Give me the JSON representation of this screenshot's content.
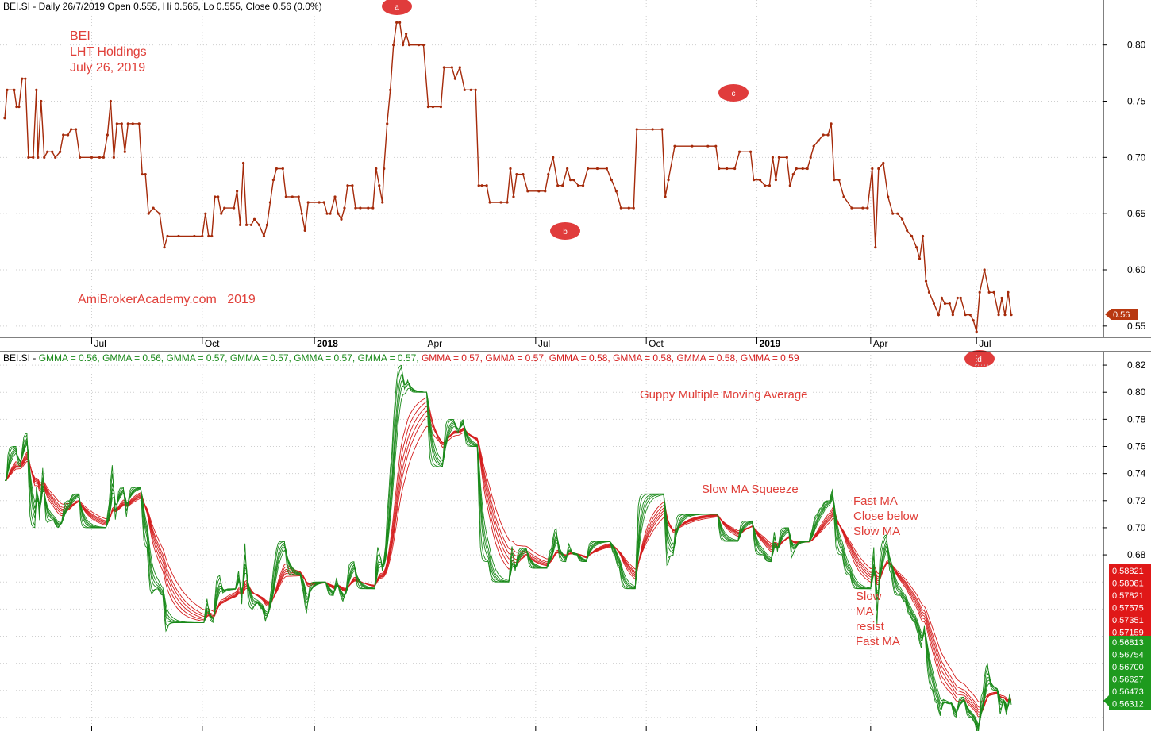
{
  "chart_data": [
    {
      "type": "line",
      "header": "BEI.SI - Daily 26/7/2019 Open 0.555, Hi 0.565, Lo 0.555, Close 0.56 (0.0%)",
      "ylim": [
        0.54,
        0.84
      ],
      "y_ticks": [
        "0.80",
        "0.75",
        "0.70",
        "0.65",
        "0.60",
        "0.55"
      ],
      "x_ticks": [
        "Jul",
        "Oct",
        "2018",
        "Apr",
        "Jul",
        "Oct",
        "2019",
        "Apr",
        "Jul"
      ],
      "last_value_label": "0.56",
      "series": [
        {
          "color": "#a52a0a",
          "points": [
            [
              0,
              0.735
            ],
            [
              3,
              0.76
            ],
            [
              12,
              0.76
            ],
            [
              15,
              0.745
            ],
            [
              18,
              0.745
            ],
            [
              22,
              0.77
            ],
            [
              26,
              0.77
            ],
            [
              30,
              0.7
            ],
            [
              36,
              0.7
            ],
            [
              40,
              0.76
            ],
            [
              42,
              0.7
            ],
            [
              46,
              0.75
            ],
            [
              50,
              0.7
            ],
            [
              54,
              0.705
            ],
            [
              60,
              0.705
            ],
            [
              64,
              0.7
            ],
            [
              70,
              0.705
            ],
            [
              74,
              0.72
            ],
            [
              80,
              0.72
            ],
            [
              84,
              0.725
            ],
            [
              90,
              0.725
            ],
            [
              95,
              0.7
            ],
            [
              110,
              0.7
            ],
            [
              120,
              0.7
            ],
            [
              125,
              0.7
            ],
            [
              130,
              0.72
            ],
            [
              134,
              0.75
            ],
            [
              138,
              0.7
            ],
            [
              142,
              0.73
            ],
            [
              148,
              0.73
            ],
            [
              152,
              0.705
            ],
            [
              156,
              0.73
            ],
            [
              162,
              0.73
            ],
            [
              170,
              0.73
            ],
            [
              174,
              0.685
            ],
            [
              178,
              0.685
            ],
            [
              182,
              0.65
            ],
            [
              188,
              0.655
            ],
            [
              196,
              0.65
            ],
            [
              202,
              0.62
            ],
            [
              206,
              0.63
            ],
            [
              220,
              0.63
            ],
            [
              240,
              0.63
            ],
            [
              250,
              0.63
            ],
            [
              254,
              0.65
            ],
            [
              258,
              0.63
            ],
            [
              262,
              0.63
            ],
            [
              266,
              0.665
            ],
            [
              270,
              0.665
            ],
            [
              274,
              0.65
            ],
            [
              278,
              0.655
            ],
            [
              290,
              0.655
            ],
            [
              294,
              0.67
            ],
            [
              298,
              0.64
            ],
            [
              302,
              0.695
            ],
            [
              306,
              0.64
            ],
            [
              312,
              0.64
            ],
            [
              316,
              0.645
            ],
            [
              322,
              0.64
            ],
            [
              328,
              0.63
            ],
            [
              332,
              0.64
            ],
            [
              336,
              0.66
            ],
            [
              340,
              0.68
            ],
            [
              344,
              0.69
            ],
            [
              352,
              0.69
            ],
            [
              356,
              0.665
            ],
            [
              364,
              0.665
            ],
            [
              372,
              0.665
            ],
            [
              376,
              0.65
            ],
            [
              380,
              0.635
            ],
            [
              384,
              0.66
            ],
            [
              398,
              0.66
            ],
            [
              404,
              0.66
            ],
            [
              408,
              0.65
            ],
            [
              412,
              0.65
            ],
            [
              418,
              0.665
            ],
            [
              422,
              0.65
            ],
            [
              426,
              0.645
            ],
            [
              430,
              0.655
            ],
            [
              434,
              0.675
            ],
            [
              440,
              0.675
            ],
            [
              444,
              0.655
            ],
            [
              450,
              0.655
            ],
            [
              460,
              0.655
            ],
            [
              466,
              0.655
            ],
            [
              470,
              0.69
            ],
            [
              474,
              0.675
            ],
            [
              478,
              0.66
            ],
            [
              480,
              0.69
            ],
            [
              484,
              0.73
            ],
            [
              488,
              0.76
            ],
            [
              492,
              0.8
            ],
            [
              496,
              0.82
            ],
            [
              500,
              0.82
            ],
            [
              504,
              0.8
            ],
            [
              508,
              0.81
            ],
            [
              512,
              0.8
            ],
            [
              524,
              0.8
            ],
            [
              530,
              0.8
            ],
            [
              536,
              0.745
            ],
            [
              542,
              0.745
            ],
            [
              552,
              0.745
            ],
            [
              556,
              0.78
            ],
            [
              566,
              0.78
            ],
            [
              570,
              0.77
            ],
            [
              576,
              0.78
            ],
            [
              582,
              0.76
            ],
            [
              590,
              0.76
            ],
            [
              596,
              0.76
            ],
            [
              600,
              0.675
            ],
            [
              604,
              0.675
            ],
            [
              610,
              0.675
            ],
            [
              614,
              0.66
            ],
            [
              628,
              0.66
            ],
            [
              636,
              0.66
            ],
            [
              640,
              0.69
            ],
            [
              644,
              0.665
            ],
            [
              648,
              0.685
            ],
            [
              656,
              0.685
            ],
            [
              662,
              0.67
            ],
            [
              676,
              0.67
            ],
            [
              684,
              0.67
            ],
            [
              688,
              0.685
            ],
            [
              694,
              0.7
            ],
            [
              700,
              0.675
            ],
            [
              706,
              0.675
            ],
            [
              712,
              0.69
            ],
            [
              716,
              0.68
            ],
            [
              720,
              0.68
            ],
            [
              726,
              0.675
            ],
            [
              732,
              0.675
            ],
            [
              738,
              0.69
            ],
            [
              750,
              0.69
            ],
            [
              762,
              0.69
            ],
            [
              768,
              0.68
            ],
            [
              774,
              0.67
            ],
            [
              780,
              0.655
            ],
            [
              790,
              0.655
            ],
            [
              796,
              0.655
            ],
            [
              800,
              0.725
            ],
            [
              820,
              0.725
            ],
            [
              832,
              0.725
            ],
            [
              836,
              0.665
            ],
            [
              840,
              0.68
            ],
            [
              848,
              0.71
            ],
            [
              870,
              0.71
            ],
            [
              890,
              0.71
            ],
            [
              900,
              0.71
            ],
            [
              904,
              0.69
            ],
            [
              914,
              0.69
            ],
            [
              924,
              0.69
            ],
            [
              930,
              0.705
            ],
            [
              944,
              0.705
            ],
            [
              948,
              0.68
            ],
            [
              956,
              0.68
            ],
            [
              962,
              0.675
            ],
            [
              968,
              0.675
            ],
            [
              972,
              0.7
            ],
            [
              976,
              0.68
            ],
            [
              980,
              0.7
            ],
            [
              990,
              0.7
            ],
            [
              994,
              0.675
            ],
            [
              998,
              0.685
            ],
            [
              1002,
              0.69
            ],
            [
              1010,
              0.69
            ],
            [
              1016,
              0.69
            ],
            [
              1020,
              0.7
            ],
            [
              1024,
              0.71
            ],
            [
              1030,
              0.715
            ],
            [
              1036,
              0.72
            ],
            [
              1042,
              0.72
            ],
            [
              1046,
              0.73
            ],
            [
              1050,
              0.68
            ],
            [
              1056,
              0.68
            ],
            [
              1062,
              0.665
            ],
            [
              1072,
              0.655
            ],
            [
              1086,
              0.655
            ],
            [
              1092,
              0.655
            ],
            [
              1098,
              0.69
            ],
            [
              1102,
              0.62
            ],
            [
              1106,
              0.69
            ],
            [
              1112,
              0.695
            ],
            [
              1118,
              0.665
            ],
            [
              1124,
              0.65
            ],
            [
              1130,
              0.65
            ],
            [
              1136,
              0.645
            ],
            [
              1142,
              0.635
            ],
            [
              1148,
              0.63
            ],
            [
              1154,
              0.62
            ],
            [
              1158,
              0.61
            ],
            [
              1162,
              0.63
            ],
            [
              1166,
              0.59
            ],
            [
              1170,
              0.58
            ],
            [
              1176,
              0.57
            ],
            [
              1182,
              0.56
            ],
            [
              1186,
              0.575
            ],
            [
              1190,
              0.57
            ],
            [
              1196,
              0.57
            ],
            [
              1200,
              0.56
            ],
            [
              1206,
              0.575
            ],
            [
              1210,
              0.575
            ],
            [
              1216,
              0.56
            ],
            [
              1222,
              0.56
            ],
            [
              1226,
              0.555
            ],
            [
              1230,
              0.545
            ],
            [
              1234,
              0.58
            ],
            [
              1240,
              0.6
            ],
            [
              1246,
              0.58
            ],
            [
              1252,
              0.58
            ],
            [
              1258,
              0.56
            ],
            [
              1262,
              0.575
            ],
            [
              1266,
              0.56
            ],
            [
              1270,
              0.58
            ],
            [
              1274,
              0.56
            ]
          ]
        }
      ],
      "annotations": [
        "BEI",
        "LHT Holdings",
        "July 26, 2019",
        "AmiBrokerAcademy.com   2019"
      ],
      "markers": [
        "a",
        "b",
        "c",
        "d"
      ]
    },
    {
      "type": "line",
      "header_parts": [
        {
          "text": "BEI.SI - ",
          "color": "#000000"
        },
        {
          "text": "GMMA = 0.56, ",
          "color": "#1b8a1b"
        },
        {
          "text": "GMMA = 0.56, ",
          "color": "#1b8a1b"
        },
        {
          "text": "GMMA = 0.57, ",
          "color": "#1b8a1b"
        },
        {
          "text": "GMMA = 0.57, ",
          "color": "#1b8a1b"
        },
        {
          "text": "GMMA = 0.57, ",
          "color": "#1b8a1b"
        },
        {
          "text": "GMMA = 0.57, ",
          "color": "#1b8a1b"
        },
        {
          "text": "GMMA = 0.57, ",
          "color": "#d41e1e"
        },
        {
          "text": "GMMA = 0.57, ",
          "color": "#d41e1e"
        },
        {
          "text": "GMMA = 0.58, ",
          "color": "#d41e1e"
        },
        {
          "text": "GMMA = 0.58, ",
          "color": "#d41e1e"
        },
        {
          "text": "GMMA = 0.58, ",
          "color": "#d41e1e"
        },
        {
          "text": "GMMA = 0.59",
          "color": "#d41e1e"
        }
      ],
      "ylim": [
        0.55,
        0.83
      ],
      "y_ticks": [
        "0.82",
        "0.80",
        "0.78",
        "0.76",
        "0.74",
        "0.72",
        "0.70",
        "0.68"
      ],
      "annotations": [
        "Guppy Multiple Moving Average",
        "Slow MA Squeeze",
        "Fast MA",
        "Close below",
        "Slow MA",
        "Slow",
        "MA",
        "resist",
        "Fast MA"
      ],
      "slow_ma_labels": [
        "0.58821",
        "0.58081",
        "0.57821",
        "0.57575",
        "0.57351",
        "0.57159"
      ],
      "fast_ma_labels": [
        "0.56813",
        "0.56754",
        "0.56700",
        "0.56627",
        "0.56473",
        "0.56312"
      ],
      "fast_color": "#1b8a1b",
      "slow_color": "#d41e1e"
    }
  ]
}
